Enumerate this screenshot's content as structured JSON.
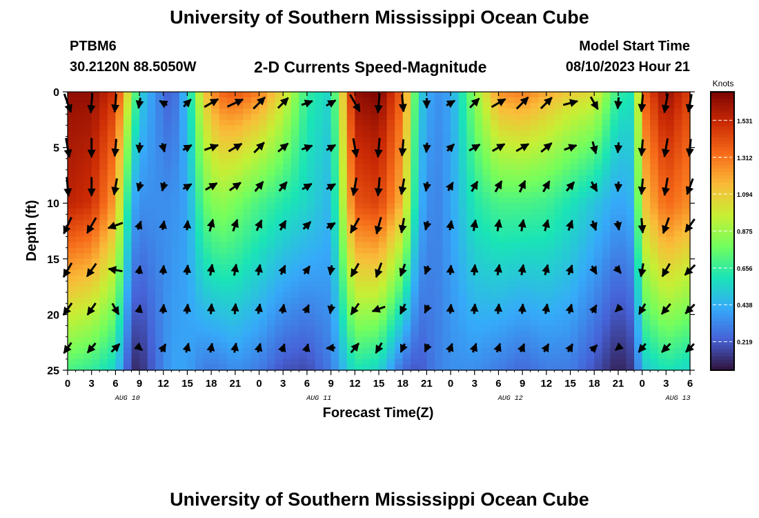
{
  "header": {
    "title": "University of Southern Mississippi Ocean Cube",
    "station": "PTBM6",
    "coords": "30.2120N  88.5050W",
    "subtitle": "2-D Currents Speed-Magnitude",
    "model_start_label": "Model Start Time",
    "model_start_value": "08/10/2023 Hour 21"
  },
  "footer": {
    "title": "University of Southern Mississippi Ocean Cube"
  },
  "chart_data": {
    "type": "heatmap",
    "title": "2-D Currents Speed-Magnitude",
    "xlabel": "Forecast Time(Z)",
    "ylabel": "Depth (ft)",
    "x_tick_labels": [
      "0",
      "3",
      "6",
      "9",
      "12",
      "15",
      "18",
      "21",
      "0",
      "3",
      "6",
      "9",
      "12",
      "15",
      "18",
      "21",
      "0",
      "3",
      "6",
      "9",
      "12",
      "15",
      "18",
      "21",
      "0",
      "3",
      "6"
    ],
    "date_labels": [
      "AUG 10",
      "AUG 11",
      "AUG 12",
      "AUG 13"
    ],
    "date_label_hours": [
      7.5,
      31.5,
      55.5,
      76.5
    ],
    "x_range_hours": [
      0,
      78
    ],
    "y_ticks": [
      0,
      5,
      10,
      15,
      20,
      25
    ],
    "ylim": [
      0,
      25
    ],
    "y_inverted": true,
    "colorbar": {
      "label": "Knots",
      "ticks": [
        0.219,
        0.438,
        0.656,
        0.875,
        1.094,
        1.312,
        1.531
      ],
      "range": [
        0.05,
        1.7
      ],
      "colors": [
        "#30123b",
        "#4662d7",
        "#36aaf9",
        "#1ae4b6",
        "#72fe5e",
        "#c7ef34",
        "#fabb39",
        "#f66b19",
        "#cb2a04",
        "#7a0403"
      ]
    },
    "speed_profile": {
      "description_units": "knots",
      "hours": [
        0,
        3,
        6,
        8,
        9,
        11,
        13,
        15,
        17,
        19,
        21,
        24,
        27,
        30,
        33,
        36,
        39,
        42,
        44,
        46,
        48,
        51,
        54,
        57,
        60,
        63,
        66,
        69,
        71,
        72,
        75,
        78
      ],
      "surface": [
        1.65,
        1.65,
        1.5,
        0.9,
        0.55,
        0.35,
        0.2,
        0.5,
        1.1,
        1.35,
        1.4,
        1.3,
        1.05,
        0.65,
        0.55,
        1.65,
        1.7,
        1.35,
        0.55,
        0.35,
        0.4,
        0.85,
        1.25,
        1.3,
        1.2,
        1.1,
        1.05,
        0.65,
        0.6,
        1.35,
        1.65,
        1.45
      ],
      "mid_10ft": [
        1.55,
        1.5,
        1.2,
        0.45,
        0.35,
        0.35,
        0.35,
        0.4,
        0.75,
        0.85,
        0.8,
        0.7,
        0.62,
        0.55,
        0.45,
        1.4,
        1.45,
        1.15,
        0.45,
        0.3,
        0.4,
        0.62,
        0.7,
        0.7,
        0.68,
        0.6,
        0.5,
        0.4,
        0.45,
        1.1,
        1.35,
        1.25
      ],
      "bottom_25ft": [
        0.7,
        0.65,
        0.55,
        0.12,
        0.1,
        0.25,
        0.4,
        0.4,
        0.3,
        0.3,
        0.35,
        0.3,
        0.2,
        0.18,
        0.3,
        0.6,
        0.55,
        0.25,
        0.2,
        0.3,
        0.35,
        0.35,
        0.3,
        0.25,
        0.3,
        0.3,
        0.2,
        0.08,
        0.15,
        0.5,
        0.6,
        0.55
      ]
    },
    "vectors": {
      "units": "degrees (direction toward, 0 = up on plot)",
      "hours": [
        0,
        3,
        6,
        9,
        12,
        15,
        18,
        21,
        24,
        27,
        30,
        33,
        36,
        39,
        42,
        45,
        48,
        51,
        54,
        57,
        60,
        63,
        66,
        69,
        72,
        75,
        78
      ],
      "depths": [
        1,
        5,
        8.5,
        12,
        16,
        19.5,
        23
      ],
      "rows": [
        [
          160,
          185,
          185,
          190,
          300,
          45,
          60,
          65,
          45,
          45,
          70,
          60,
          150,
          185,
          175,
          180,
          60,
          45,
          60,
          45,
          45,
          75,
          150,
          185,
          185,
          190,
          190
        ],
        [
          170,
          180,
          185,
          185,
          165,
          60,
          70,
          60,
          45,
          50,
          70,
          60,
          170,
          185,
          185,
          185,
          45,
          60,
          60,
          60,
          50,
          70,
          165,
          185,
          185,
          190,
          185
        ],
        [
          175,
          180,
          190,
          195,
          195,
          60,
          60,
          55,
          40,
          40,
          60,
          60,
          190,
          185,
          190,
          190,
          30,
          30,
          30,
          25,
          30,
          40,
          150,
          185,
          185,
          190,
          200
        ],
        [
          205,
          210,
          250,
          20,
          10,
          5,
          15,
          20,
          25,
          30,
          45,
          60,
          210,
          195,
          190,
          195,
          10,
          10,
          10,
          10,
          15,
          20,
          160,
          170,
          175,
          200,
          215
        ],
        [
          210,
          215,
          280,
          10,
          5,
          5,
          10,
          10,
          10,
          25,
          35,
          190,
          210,
          200,
          200,
          200,
          5,
          5,
          10,
          10,
          15,
          20,
          150,
          140,
          190,
          210,
          225
        ],
        [
          215,
          215,
          150,
          10,
          5,
          5,
          5,
          5,
          10,
          10,
          25,
          190,
          215,
          250,
          205,
          205,
          5,
          5,
          5,
          5,
          10,
          15,
          30,
          225,
          210,
          220,
          225
        ],
        [
          215,
          220,
          45,
          130,
          30,
          15,
          10,
          10,
          15,
          20,
          15,
          265,
          40,
          210,
          205,
          205,
          20,
          20,
          20,
          25,
          30,
          30,
          45,
          230,
          220,
          225,
          225
        ]
      ]
    }
  }
}
